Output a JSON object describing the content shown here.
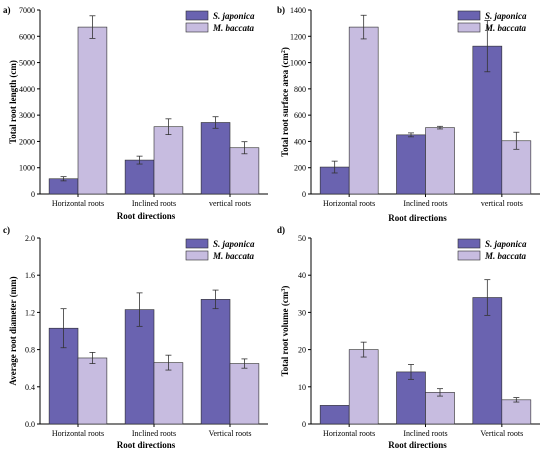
{
  "colors": {
    "s_japonica": "#6A63B0",
    "m_baccata": "#C7BCE0"
  },
  "chart_data": [
    {
      "type": "bar",
      "panel": "a)",
      "categories": [
        "Horizontal roots",
        "Inclined roots",
        "vertical roots"
      ],
      "xlabel": "Root directions",
      "ylabel": "Total root length (cm)",
      "ylim": [
        0,
        7000
      ],
      "yticks": [
        0,
        1000,
        2000,
        3000,
        4000,
        5000,
        6000,
        7000
      ],
      "legend_position": "top-right",
      "series": [
        {
          "name": "S. japonica",
          "values": [
            580,
            1290,
            2720
          ],
          "errors": [
            80,
            150,
            220
          ]
        },
        {
          "name": "M. baccata",
          "values": [
            6350,
            2560,
            1760
          ],
          "errors": [
            430,
            300,
            230
          ]
        }
      ]
    },
    {
      "type": "bar",
      "panel": "b)",
      "categories": [
        "Horizontal roots",
        "Inclined roots",
        "vertical roots"
      ],
      "xlabel": "Root directions",
      "ylabel": "Total root surface area (cm²)",
      "ylim": [
        0,
        1400
      ],
      "yticks": [
        0,
        200,
        400,
        600,
        800,
        1000,
        1200,
        1400
      ],
      "legend_position": "top-right",
      "series": [
        {
          "name": "S. japonica",
          "values": [
            205,
            450,
            1125
          ],
          "errors": [
            45,
            15,
            195
          ]
        },
        {
          "name": "M. baccata",
          "values": [
            1270,
            505,
            405
          ],
          "errors": [
            90,
            10,
            65
          ]
        }
      ]
    },
    {
      "type": "bar",
      "panel": "c)",
      "categories": [
        "Horizontal roots",
        "Inclined roots",
        "Vertical roots"
      ],
      "xlabel": "Root directions",
      "ylabel": "Average root diameter (mm)",
      "ylim": [
        0,
        2.0
      ],
      "yticks": [
        "0.0",
        "0.4",
        "0.8",
        "1.2",
        "1.6",
        "2.0"
      ],
      "legend_position": "top-right",
      "series": [
        {
          "name": "S. japonica",
          "values": [
            1.03,
            1.23,
            1.34
          ],
          "errors": [
            0.21,
            0.18,
            0.1
          ]
        },
        {
          "name": "M. baccata",
          "values": [
            0.71,
            0.66,
            0.65
          ],
          "errors": [
            0.06,
            0.08,
            0.05
          ]
        }
      ]
    },
    {
      "type": "bar",
      "panel": "d)",
      "categories": [
        "Horizontal roots",
        "Inclined roots",
        "Vertical roots"
      ],
      "xlabel": "Root directions",
      "ylabel": "Total root volume (cm³)",
      "ylim": [
        0,
        50
      ],
      "yticks": [
        0,
        10,
        20,
        30,
        40,
        50
      ],
      "legend_position": "top-right",
      "series": [
        {
          "name": "S. japonica",
          "values": [
            5,
            14,
            34
          ],
          "errors": [
            0,
            2,
            4.8
          ]
        },
        {
          "name": "M. baccata",
          "values": [
            20,
            8.5,
            6.5
          ],
          "errors": [
            2,
            1,
            0.6
          ]
        }
      ]
    }
  ]
}
